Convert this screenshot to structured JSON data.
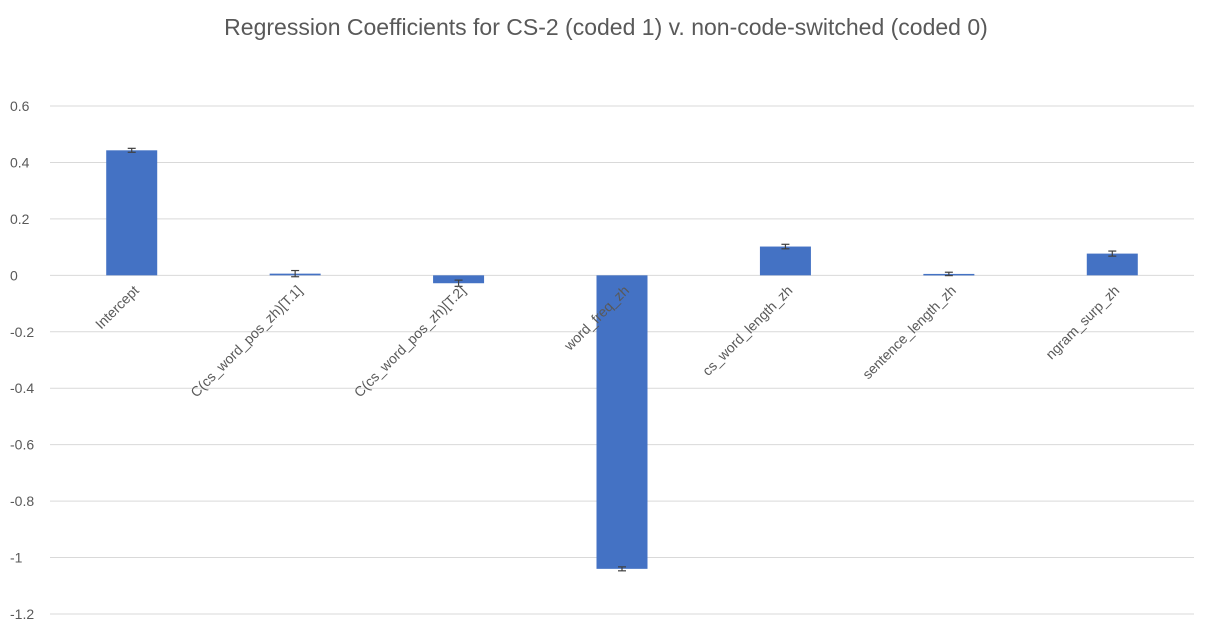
{
  "chart_data": {
    "type": "bar",
    "title": "Regression Coefficients for CS-2 (coded 1) v. non-code-switched (coded 0)",
    "xlabel": "",
    "ylabel": "",
    "ylim": [
      -1.2,
      0.6
    ],
    "yticks": [
      0.6,
      0.4,
      0.2,
      0,
      -0.2,
      -0.4,
      -0.6,
      -0.8,
      -1,
      -1.2
    ],
    "ytick_labels": [
      "0.6",
      "0.4",
      "0.2",
      "0",
      "-0.2",
      "-0.4",
      "-0.6",
      "-0.8",
      "-1",
      "-1.2"
    ],
    "grid": true,
    "legend": "none",
    "bar_color": "#4472c4",
    "categories": [
      "Intercept",
      "C(cs_word_pos_zh)[T.1]",
      "C(cs_word_pos_zh)[T.2]",
      "word_freq_zh",
      "cs_word_length_zh",
      "sentence_length_zh",
      "ngram_surp_zh"
    ],
    "values": [
      0.443,
      0.006,
      -0.028,
      -1.04,
      0.102,
      0.005,
      0.077
    ],
    "error": [
      0.007,
      0.011,
      0.011,
      0.007,
      0.008,
      0.006,
      0.009
    ]
  }
}
